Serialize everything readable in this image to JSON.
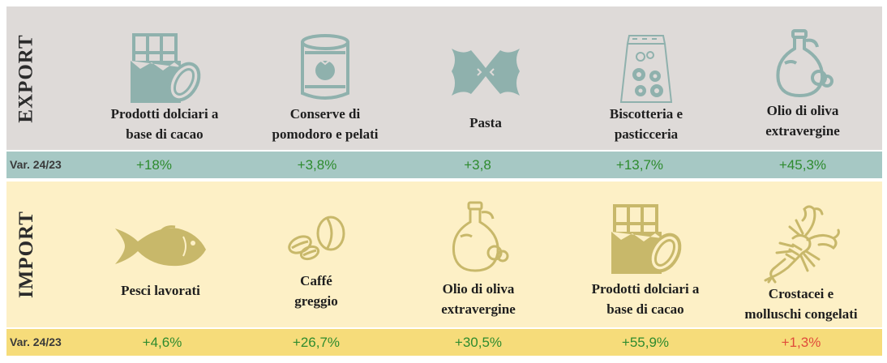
{
  "export": {
    "section_label": "EXPORT",
    "var_label": "Var. 24/23",
    "items": [
      {
        "label_line1": "Prodotti dolciari a",
        "label_line2": "base di cacao",
        "icon": "chocolate-cacao-icon",
        "variation": "+18%"
      },
      {
        "label_line1": "Conserve di",
        "label_line2": "pomodoro e pelati",
        "icon": "tomato-can-icon",
        "variation": "+3,8%"
      },
      {
        "label_line1": "Pasta",
        "label_line2": "",
        "icon": "farfalle-pasta-icon",
        "variation": "+3,8"
      },
      {
        "label_line1": "Biscotteria e",
        "label_line2": "pasticceria",
        "icon": "biscuit-bag-icon",
        "variation": "+13,7%"
      },
      {
        "label_line1": "Olio di oliva",
        "label_line2": "extravergine",
        "icon": "olive-oil-bottle-icon",
        "variation": "+45,3%"
      }
    ]
  },
  "import": {
    "section_label": "IMPORT",
    "var_label": "Var. 24/23",
    "items": [
      {
        "label_line1": "Pesci lavorati",
        "label_line2": "",
        "icon": "fish-icon",
        "variation": "+4,6%"
      },
      {
        "label_line1": "Caffé",
        "label_line2": "greggio",
        "icon": "coffee-beans-icon",
        "variation": "+26,7%"
      },
      {
        "label_line1": "Olio di oliva",
        "label_line2": "extravergine",
        "icon": "olive-oil-bottle-icon",
        "variation": "+30,5%"
      },
      {
        "label_line1": "Prodotti dolciari a",
        "label_line2": "base di cacao",
        "icon": "chocolate-cacao-icon",
        "variation": "+55,9%"
      },
      {
        "label_line1": "Crostacei e",
        "label_line2": "molluschi congelati",
        "icon": "lobster-icon",
        "variation": "+1,3%"
      }
    ]
  },
  "colors": {
    "export_bg": "#dedad8",
    "export_var_bg": "#a6c8c4",
    "export_icon": "#8fb1ad",
    "import_bg": "#fdf0c6",
    "import_var_bg": "#f6dc7a",
    "import_icon": "#c8b86a",
    "positive": "#2e8b2e",
    "negative": "#e04b3a"
  }
}
